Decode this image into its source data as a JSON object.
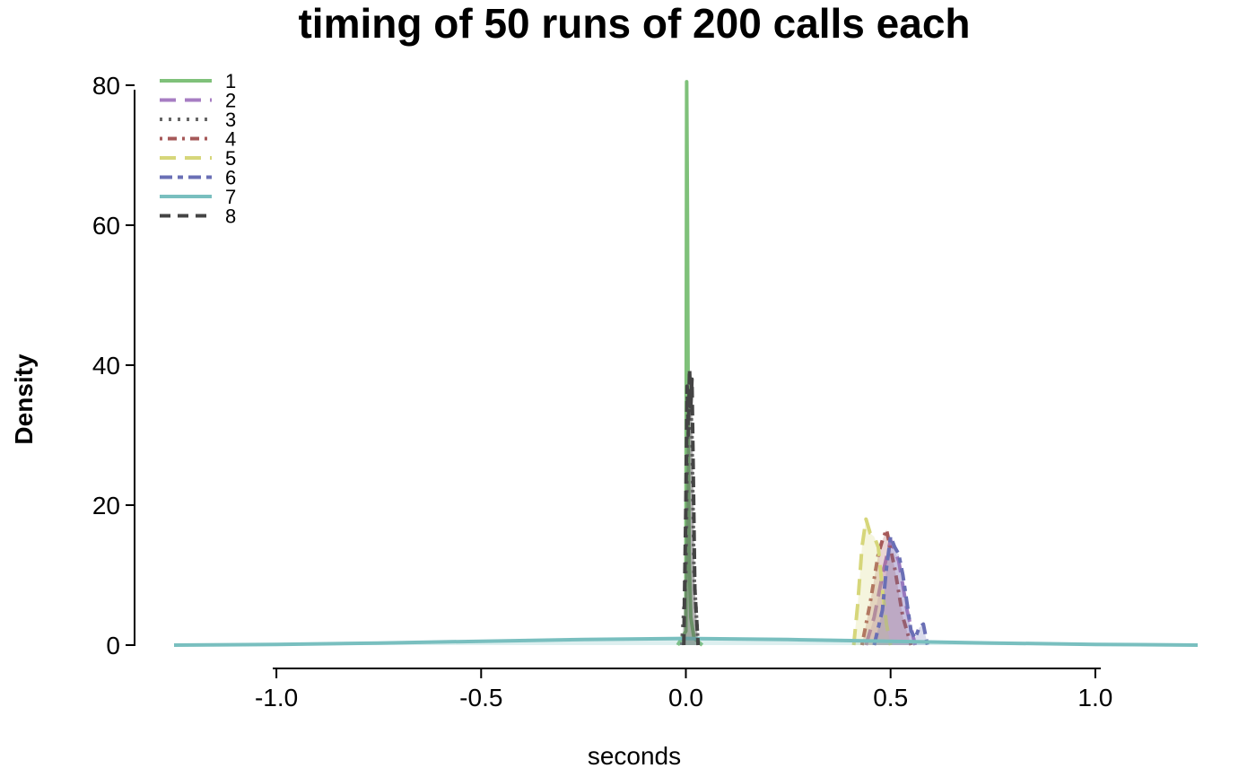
{
  "chart_data": {
    "type": "area",
    "title": "timing of 50 runs of 200 calls each",
    "xlabel": "seconds",
    "ylabel": "Density",
    "xlim": [
      -1.25,
      1.25
    ],
    "ylim": [
      0,
      80
    ],
    "xticks": [
      "-1.0",
      "-0.5",
      "0.0",
      "0.5",
      "1.0"
    ],
    "xtick_values": [
      -1.0,
      -0.5,
      0.0,
      0.5,
      1.0
    ],
    "yticks": [
      "0",
      "20",
      "40",
      "60",
      "80"
    ],
    "ytick_values": [
      0,
      20,
      40,
      60,
      80
    ],
    "grid": false,
    "legend_position": "top-left",
    "series": [
      {
        "name": "1",
        "color": "#7fc17a",
        "dash": "solid",
        "x": [
          -0.02,
          0.0,
          0.002,
          0.004,
          0.006,
          0.008,
          0.012,
          0.02,
          0.04
        ],
        "y": [
          0,
          2,
          80.5,
          60,
          30,
          12,
          4,
          1,
          0
        ]
      },
      {
        "name": "2",
        "color": "#a77dc3",
        "dash": "longdash",
        "x": [
          0.44,
          0.46,
          0.48,
          0.5,
          0.52,
          0.54,
          0.56
        ],
        "y": [
          0,
          4,
          10,
          15,
          12,
          5,
          0
        ]
      },
      {
        "name": "3",
        "color": "#666666",
        "dash": "dotted",
        "x": [
          -0.01,
          0.0,
          0.005,
          0.01,
          0.015,
          0.02,
          0.03
        ],
        "y": [
          0,
          10,
          35,
          38,
          30,
          10,
          0
        ]
      },
      {
        "name": "4",
        "color": "#a65959",
        "dash": "dotdash",
        "x": [
          0.43,
          0.45,
          0.47,
          0.48,
          0.49,
          0.51,
          0.53,
          0.55
        ],
        "y": [
          0,
          6,
          13,
          15,
          16.5,
          11,
          4,
          0
        ]
      },
      {
        "name": "5",
        "color": "#d6d67a",
        "dash": "longdash",
        "x": [
          0.41,
          0.42,
          0.43,
          0.44,
          0.45,
          0.46,
          0.47,
          0.48,
          0.49,
          0.5
        ],
        "y": [
          0,
          6,
          14,
          18,
          16,
          15.5,
          14,
          8,
          3,
          0
        ]
      },
      {
        "name": "6",
        "color": "#6a6fb5",
        "dash": "twodash",
        "x": [
          0.46,
          0.48,
          0.49,
          0.5,
          0.51,
          0.52,
          0.53,
          0.54,
          0.55,
          0.56,
          0.57,
          0.58,
          0.59
        ],
        "y": [
          0,
          5,
          11,
          15.5,
          14,
          13,
          10,
          6,
          2,
          1,
          2.5,
          3,
          0
        ]
      },
      {
        "name": "7",
        "color": "#79bfbf",
        "dash": "solid",
        "x": [
          -1.25,
          -1.0,
          -0.75,
          -0.5,
          -0.25,
          0.0,
          0.25,
          0.5,
          0.75,
          1.0,
          1.25
        ],
        "y": [
          0,
          0.1,
          0.3,
          0.55,
          0.8,
          0.95,
          0.8,
          0.55,
          0.3,
          0.1,
          0
        ]
      },
      {
        "name": "8",
        "color": "#444444",
        "dash": "dashed",
        "x": [
          -0.005,
          0.0,
          0.003,
          0.006,
          0.009,
          0.012,
          0.015,
          0.018,
          0.022,
          0.03
        ],
        "y": [
          0,
          20,
          37,
          30,
          39.5,
          34,
          38,
          25,
          8,
          0
        ]
      }
    ]
  }
}
